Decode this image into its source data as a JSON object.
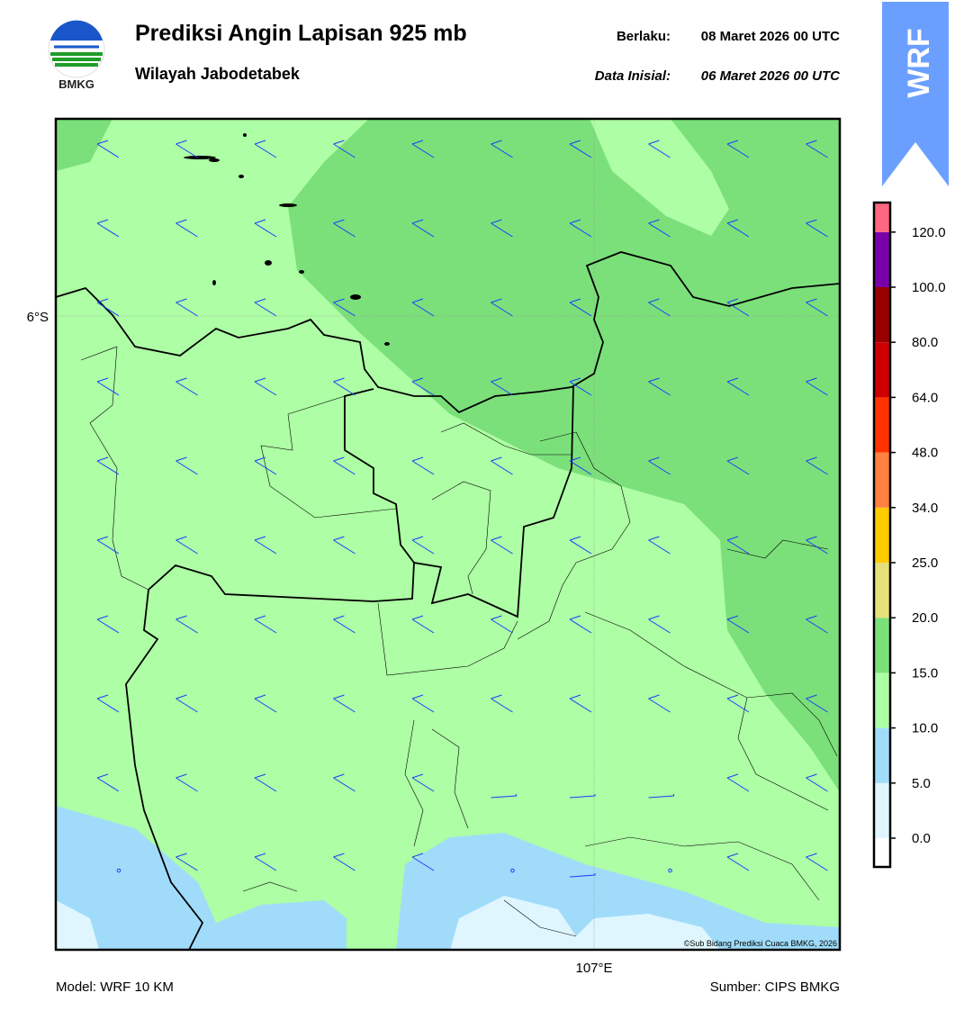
{
  "header": {
    "title": "Prediksi Angin Lapisan 925 mb",
    "subtitle": "Wilayah Jabodetabek",
    "valid_label": "Berlaku:",
    "valid_value": "08 Maret 2026 00 UTC",
    "init_label": "Data Inisial:",
    "init_value": "06 Maret 2026 00 UTC",
    "logo_text": "BMKG",
    "badge": "WRF"
  },
  "map": {
    "lat_label": "6°S",
    "lon_label": "107°E",
    "credit": "©Sub Bidang Prediksi Cuaca BMKG, 2026"
  },
  "colorbar": {
    "ticks": [
      "0.0",
      "5.0",
      "10.0",
      "15.0",
      "20.0",
      "25.0",
      "34.0",
      "48.0",
      "64.0",
      "80.0",
      "100.0",
      "120.0"
    ],
    "colors": [
      "#ffffff",
      "#dff6ff",
      "#a0dcfa",
      "#adfea4",
      "#7be07a",
      "#e6e07a",
      "#ffcc00",
      "#ff8040",
      "#ff3300",
      "#cc0000",
      "#990000",
      "#7a00aa",
      "#ff6680"
    ]
  },
  "footer": {
    "model": "Model: WRF 10 KM",
    "source": "Sumber: CIPS BMKG"
  }
}
